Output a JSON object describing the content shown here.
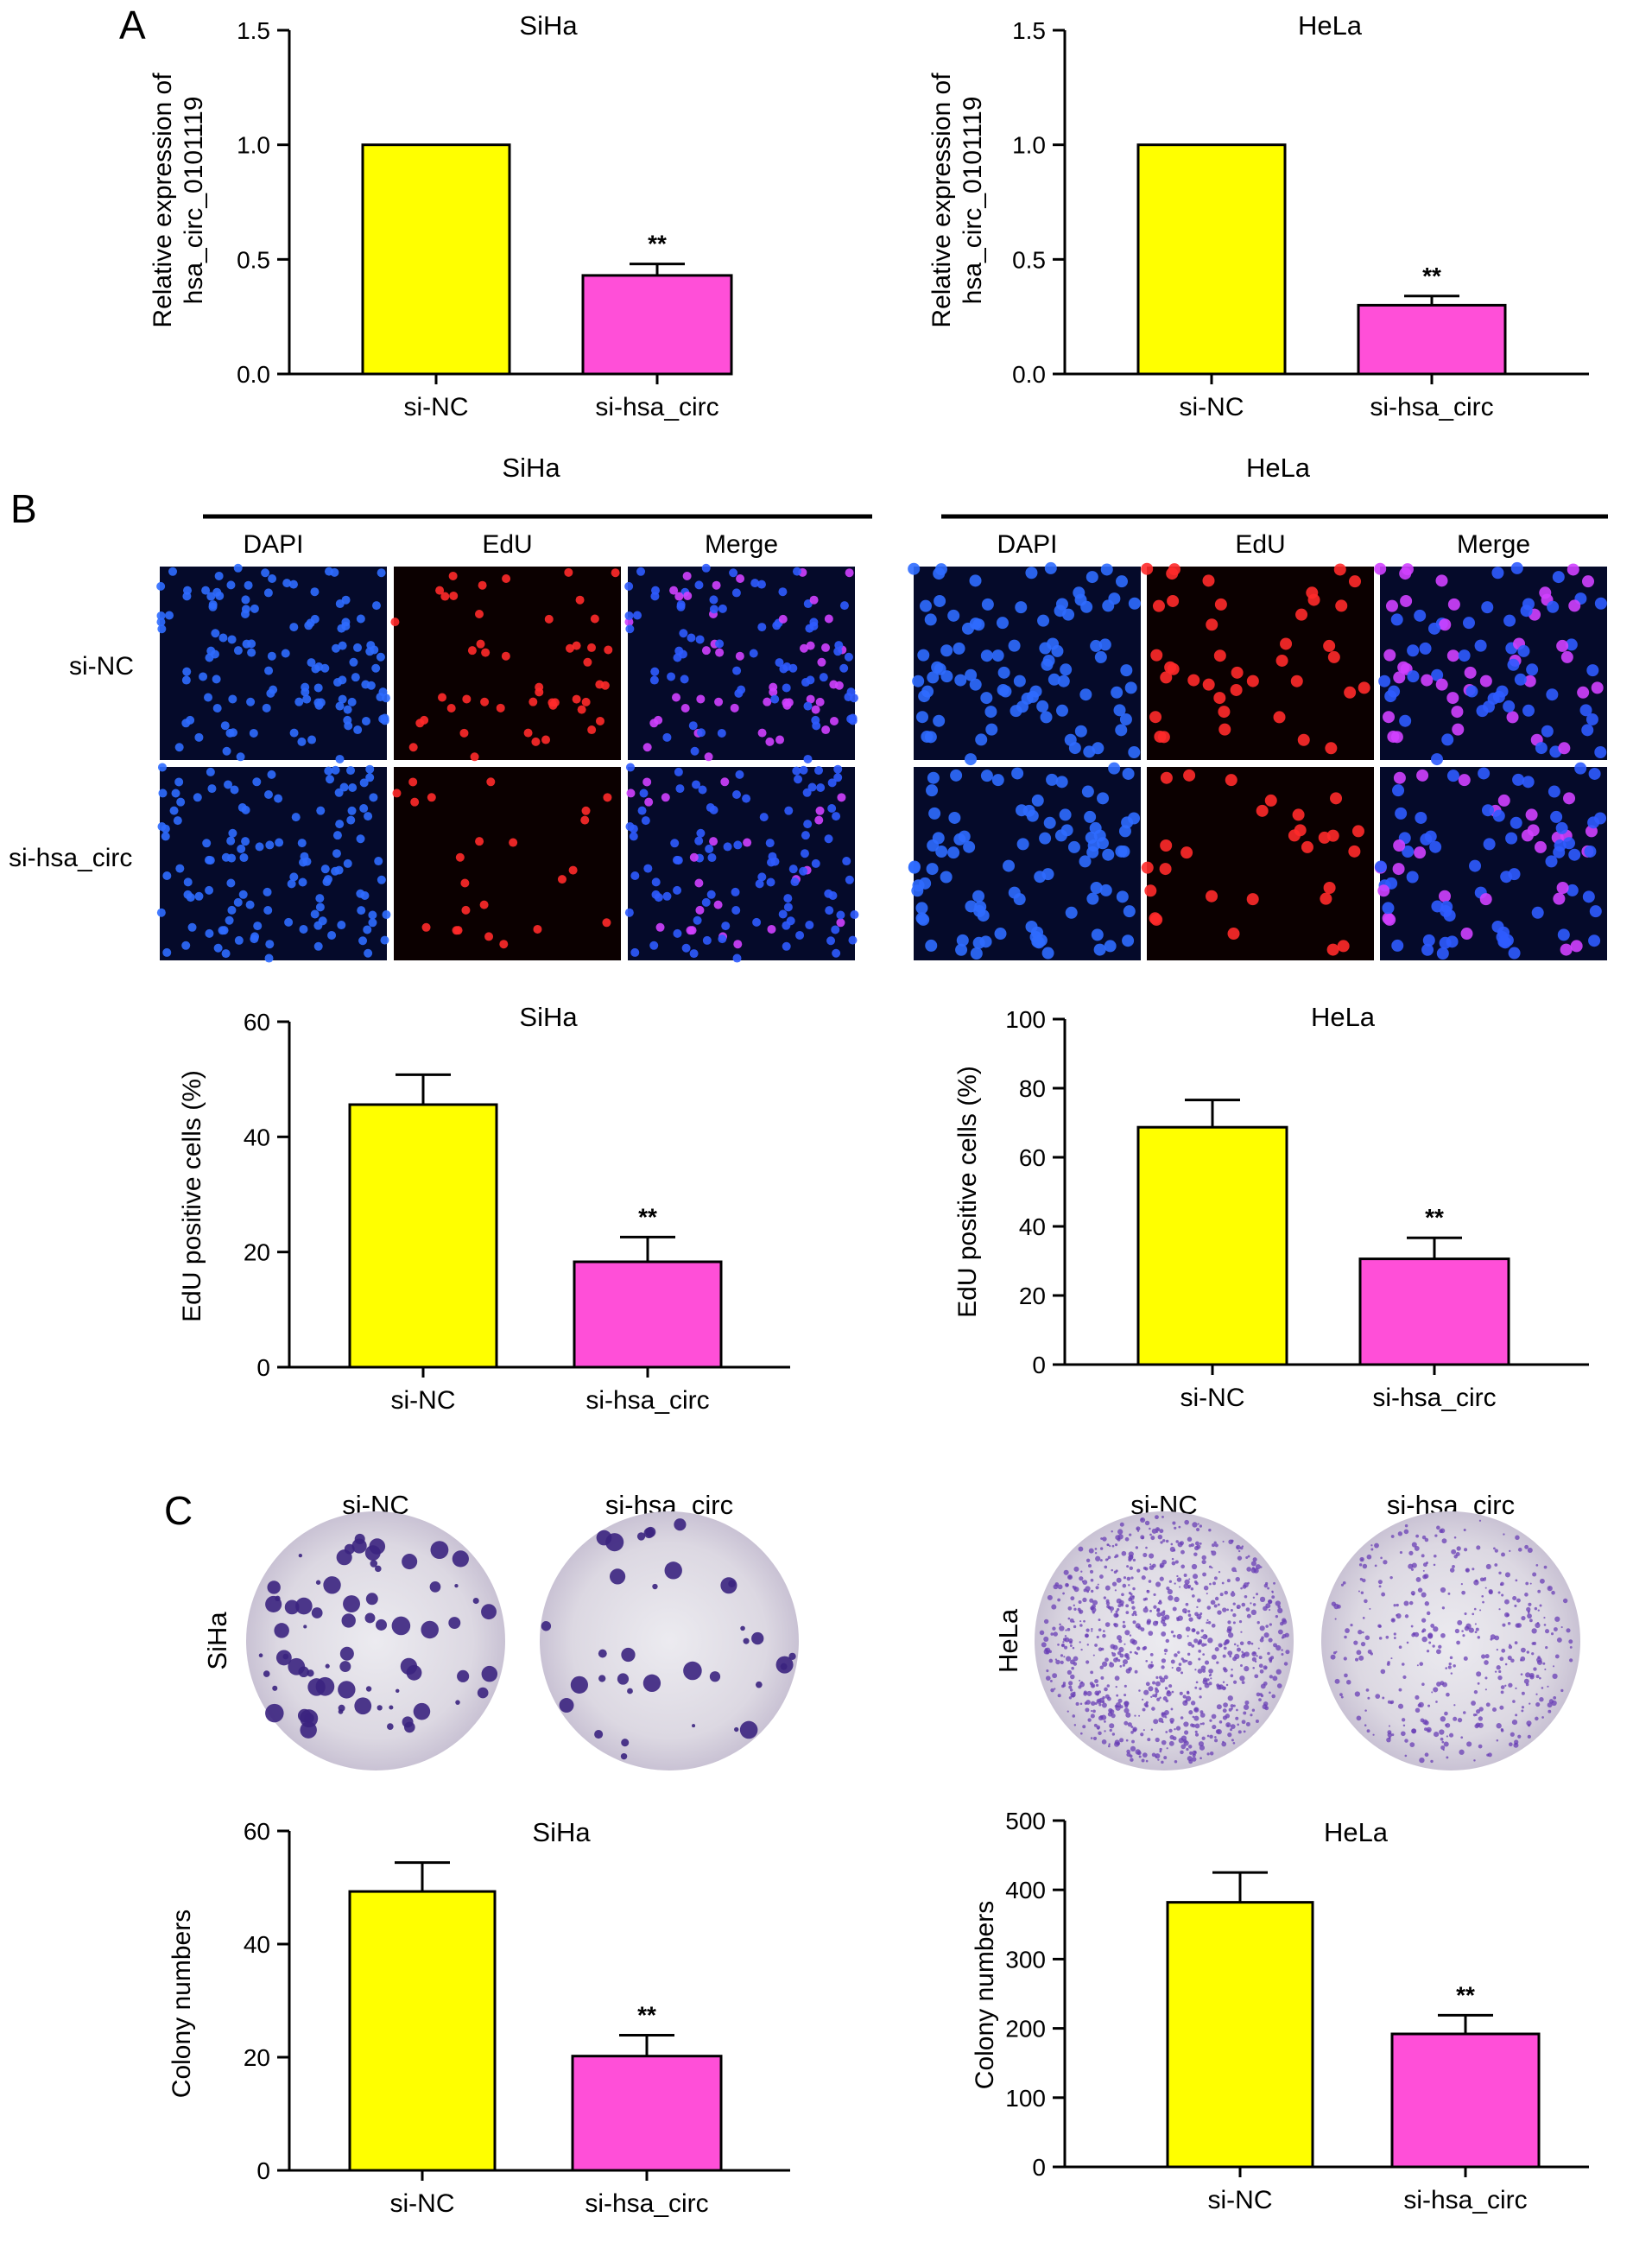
{
  "panels": {
    "A": "A",
    "B": "B",
    "C": "C"
  },
  "colors": {
    "si_nc": "#ffff00",
    "si_hsa_circ": "#ff4fd8",
    "axis": "#000000"
  },
  "microscopy": {
    "cell_lines": [
      "SiHa",
      "HeLa"
    ],
    "channels": [
      "DAPI",
      "EdU",
      "Merge"
    ],
    "rows": [
      "si-NC",
      "si-hsa_circ"
    ]
  },
  "colony_plates": {
    "cell_lines": [
      "SiHa",
      "HeLa"
    ],
    "columns": [
      "si-NC",
      "si-hsa_circ"
    ]
  },
  "chart_data": [
    {
      "id": "A_SiHa",
      "type": "bar",
      "title": "SiHa",
      "xlabel": "",
      "ylabel": "Relative expression of hsa_circ_0101119",
      "categories": [
        "si-NC",
        "si-hsa_circ"
      ],
      "values": [
        1.0,
        0.43
      ],
      "errors": [
        0,
        0.05
      ],
      "significance": [
        "",
        "**"
      ],
      "ylim": [
        0,
        1.5
      ],
      "yticks": [
        "0.0",
        "0.5",
        "1.0",
        "1.5"
      ],
      "tick_values": [
        0,
        0.5,
        1.0,
        1.5
      ]
    },
    {
      "id": "A_HeLa",
      "type": "bar",
      "title": "HeLa",
      "xlabel": "",
      "ylabel": "Relative expression of hsa_circ_0101119",
      "categories": [
        "si-NC",
        "si-hsa_circ"
      ],
      "values": [
        1.0,
        0.3
      ],
      "errors": [
        0,
        0.04
      ],
      "significance": [
        "",
        "**"
      ],
      "ylim": [
        0,
        1.5
      ],
      "yticks": [
        "0.0",
        "0.5",
        "1.0",
        "1.5"
      ],
      "tick_values": [
        0,
        0.5,
        1.0,
        1.5
      ]
    },
    {
      "id": "B_SiHa",
      "type": "bar",
      "title": "SiHa",
      "xlabel": "",
      "ylabel": "EdU positive cells (%)",
      "categories": [
        "si-NC",
        "si-hsa_circ"
      ],
      "values": [
        45.6,
        18.3
      ],
      "errors": [
        5.2,
        4.3
      ],
      "significance": [
        "",
        "**"
      ],
      "ylim": [
        0,
        60
      ],
      "yticks": [
        "0",
        "20",
        "40",
        "60"
      ],
      "tick_values": [
        0,
        20,
        40,
        60
      ]
    },
    {
      "id": "B_HeLa",
      "type": "bar",
      "title": "HeLa",
      "xlabel": "",
      "ylabel": "EdU positive cells (%)",
      "categories": [
        "si-NC",
        "si-hsa_circ"
      ],
      "values": [
        68.7,
        30.6
      ],
      "errors": [
        7.9,
        6.1
      ],
      "significance": [
        "",
        "**"
      ],
      "ylim": [
        0,
        100
      ],
      "yticks": [
        "0",
        "20",
        "40",
        "60",
        "80",
        "100"
      ],
      "tick_values": [
        0,
        20,
        40,
        60,
        80,
        100
      ]
    },
    {
      "id": "C_SiHa",
      "type": "bar",
      "title": "SiHa",
      "xlabel": "",
      "ylabel": "Colony numbers",
      "categories": [
        "si-NC",
        "si-hsa_circ"
      ],
      "values": [
        49.3,
        20.2
      ],
      "errors": [
        5.1,
        3.7
      ],
      "significance": [
        "",
        "**"
      ],
      "ylim": [
        0,
        60
      ],
      "yticks": [
        "0",
        "20",
        "40",
        "60"
      ],
      "tick_values": [
        0,
        20,
        40,
        60
      ]
    },
    {
      "id": "C_HeLa",
      "type": "bar",
      "title": "HeLa",
      "xlabel": "",
      "ylabel": "Colony numbers",
      "categories": [
        "si-NC",
        "si-hsa_circ"
      ],
      "values": [
        382,
        192
      ],
      "errors": [
        43,
        27
      ],
      "significance": [
        "",
        "**"
      ],
      "ylim": [
        0,
        500
      ],
      "yticks": [
        "0",
        "100",
        "200",
        "300",
        "400",
        "500"
      ],
      "tick_values": [
        0,
        100,
        200,
        300,
        400,
        500
      ]
    }
  ]
}
